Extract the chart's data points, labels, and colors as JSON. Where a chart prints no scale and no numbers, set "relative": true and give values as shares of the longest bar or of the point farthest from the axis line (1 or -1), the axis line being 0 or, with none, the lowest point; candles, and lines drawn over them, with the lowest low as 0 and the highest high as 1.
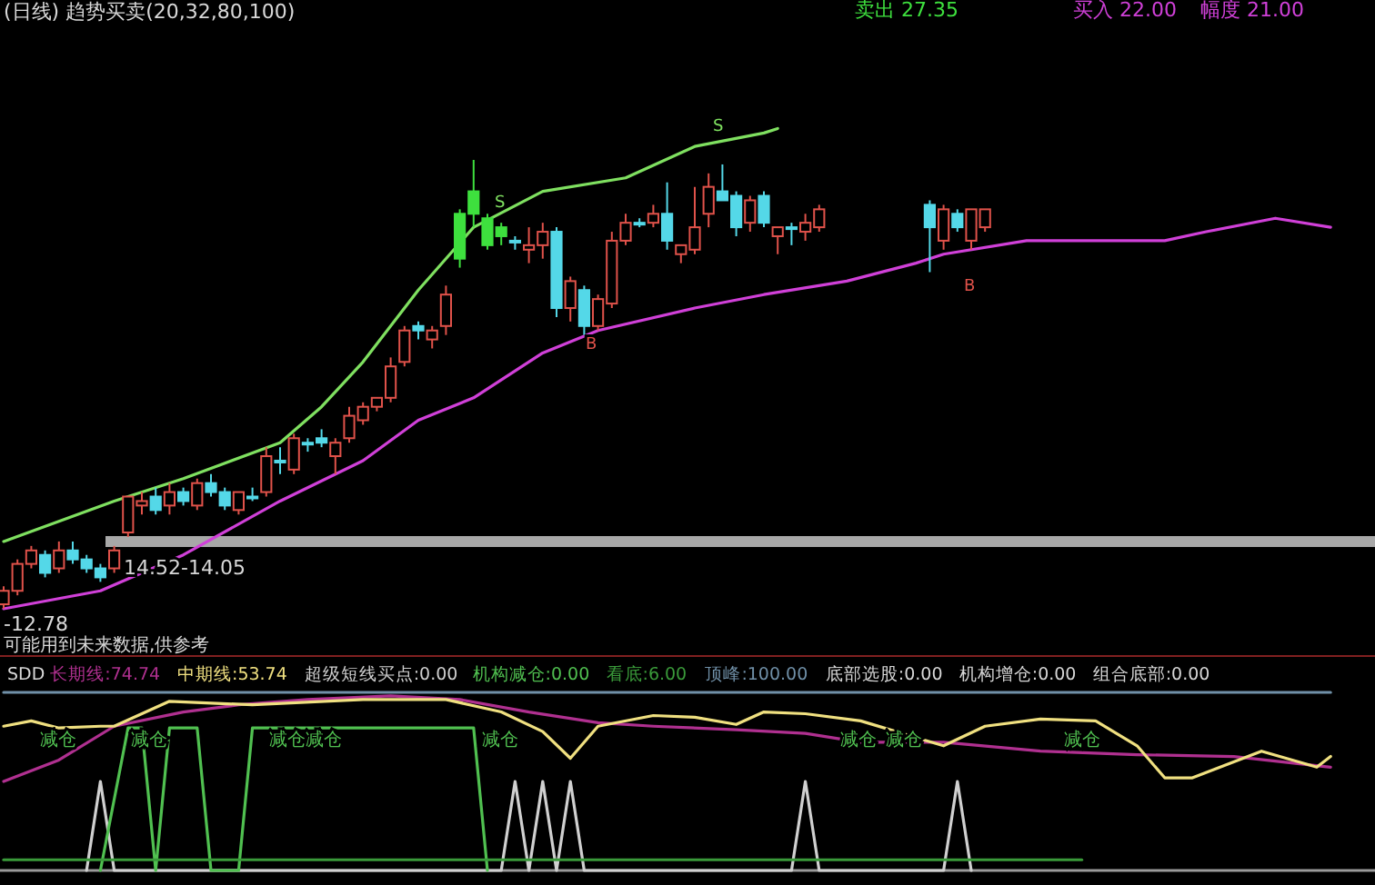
{
  "chart_data": [
    {
      "type": "candlestick",
      "relative": true,
      "title": "(日线) 趋势买卖(20,32,80,100)",
      "categories": [
        null,
        null,
        null,
        null,
        null,
        null,
        null,
        null,
        null,
        null,
        null,
        null,
        null,
        null,
        null,
        null,
        null,
        null,
        null,
        null,
        null,
        null,
        null,
        null,
        null,
        null,
        null,
        null,
        null,
        null,
        null,
        null,
        null,
        null,
        null,
        null,
        null,
        null,
        null,
        null,
        null,
        null,
        null,
        null,
        null,
        null,
        null,
        null,
        null,
        null,
        null,
        null,
        null,
        null,
        null,
        null,
        null,
        null,
        null,
        null,
        null,
        null,
        null,
        null,
        null,
        null,
        null,
        null,
        null,
        null,
        null,
        null,
        null,
        null,
        null,
        null,
        null,
        null,
        null,
        null,
        null,
        null,
        null,
        null,
        null,
        null,
        null,
        null,
        null,
        null,
        null,
        null,
        null,
        null,
        null,
        null,
        null
      ],
      "ohlc": [
        [
          0.01,
          0.05,
          0,
          0.04
        ],
        [
          0.04,
          0.11,
          0.03,
          0.1
        ],
        [
          0.1,
          0.14,
          0.09,
          0.13
        ],
        [
          0.12,
          0.13,
          0.07,
          0.08
        ],
        [
          0.09,
          0.15,
          0.08,
          0.13
        ],
        [
          0.13,
          0.15,
          0.1,
          0.11
        ],
        [
          0.11,
          0.12,
          0.08,
          0.09
        ],
        [
          0.09,
          0.1,
          0.06,
          0.07
        ],
        [
          0.09,
          0.14,
          0.08,
          0.13
        ],
        [
          0.17,
          0.25,
          0.16,
          0.25
        ],
        [
          0.23,
          0.26,
          0.21,
          0.24
        ],
        [
          0.25,
          0.27,
          0.21,
          0.22
        ],
        [
          0.23,
          0.28,
          0.21,
          0.26
        ],
        [
          0.26,
          0.27,
          0.23,
          0.24
        ],
        [
          0.23,
          0.29,
          0.22,
          0.28
        ],
        [
          0.28,
          0.3,
          0.25,
          0.26
        ],
        [
          0.26,
          0.27,
          0.22,
          0.23
        ],
        [
          0.22,
          0.26,
          0.21,
          0.26
        ],
        [
          0.25,
          0.27,
          0.24,
          0.25
        ],
        [
          0.26,
          0.36,
          0.25,
          0.34
        ],
        [
          0.33,
          0.36,
          0.3,
          0.33
        ],
        [
          0.31,
          0.39,
          0.3,
          0.38
        ],
        [
          0.37,
          0.38,
          0.35,
          0.37
        ],
        [
          0.38,
          0.4,
          0.36,
          0.37
        ],
        [
          0.34,
          0.38,
          0.3,
          0.37
        ],
        [
          0.38,
          0.45,
          0.37,
          0.43
        ],
        [
          0.42,
          0.46,
          0.41,
          0.45
        ],
        [
          0.45,
          0.47,
          0.44,
          0.47
        ],
        [
          0.47,
          0.56,
          0.46,
          0.54
        ],
        [
          0.55,
          0.63,
          0.54,
          0.62
        ],
        [
          0.63,
          0.64,
          0.6,
          0.62
        ],
        [
          0.6,
          0.63,
          0.58,
          0.62
        ],
        [
          0.63,
          0.72,
          0.61,
          0.7
        ],
        [
          0.88,
          0.89,
          0.76,
          0.78
        ],
        [
          0.93,
          1,
          0.85,
          0.88
        ],
        [
          0.87,
          0.88,
          0.8,
          0.81
        ],
        [
          0.85,
          0.86,
          0.81,
          0.83
        ],
        [
          0.82,
          0.83,
          0.8,
          0.82
        ],
        [
          0.8,
          0.85,
          0.77,
          0.81
        ],
        [
          0.81,
          0.86,
          0.78,
          0.84
        ],
        [
          0.84,
          0.85,
          0.65,
          0.67
        ],
        [
          0.67,
          0.74,
          0.64,
          0.73
        ],
        [
          0.71,
          0.72,
          0.61,
          0.63
        ],
        [
          0.63,
          0.7,
          0.62,
          0.69
        ],
        [
          0.68,
          0.84,
          0.67,
          0.82
        ],
        [
          0.82,
          0.88,
          0.81,
          0.86
        ],
        [
          0.86,
          0.87,
          0.85,
          0.86
        ],
        [
          0.86,
          0.9,
          0.85,
          0.88
        ],
        [
          0.88,
          0.95,
          0.8,
          0.82
        ],
        [
          0.79,
          0.81,
          0.77,
          0.81
        ],
        [
          0.8,
          0.94,
          0.79,
          0.85
        ],
        [
          0.88,
          0.97,
          0.85,
          0.94
        ],
        [
          0.93,
          0.99,
          0.91,
          0.91
        ],
        [
          0.92,
          0.93,
          0.83,
          0.85
        ],
        [
          0.86,
          0.92,
          0.84,
          0.91
        ],
        [
          0.92,
          0.93,
          0.85,
          0.86
        ],
        [
          0.83,
          0.85,
          0.79,
          0.85
        ],
        [
          0.85,
          0.86,
          0.81,
          0.85
        ],
        [
          0.84,
          0.88,
          0.82,
          0.86
        ],
        [
          0.85,
          0.9,
          0.84,
          0.89
        ],
        null,
        null,
        null,
        null,
        null,
        null,
        null,
        [
          0.9,
          0.91,
          0.75,
          0.85
        ],
        [
          0.82,
          0.9,
          0.8,
          0.89
        ],
        [
          0.88,
          0.89,
          0.84,
          0.85
        ],
        [
          0.82,
          0.89,
          0.8,
          0.89
        ],
        [
          0.85,
          0.89,
          0.84,
          0.89
        ],
        null,
        null,
        null,
        null,
        null,
        null,
        null,
        null,
        null,
        null,
        null,
        null,
        null,
        null,
        null,
        null,
        null,
        null,
        null,
        null,
        null,
        null,
        null,
        null,
        null
      ],
      "colors": [
        "#e0524a",
        "#e0524a",
        "#e0524a",
        "#54d8e8",
        "#e0524a",
        "#54d8e8",
        "#54d8e8",
        "#54d8e8",
        "#e0524a",
        "#e0524a",
        "#e0524a",
        "#54d8e8",
        "#e0524a",
        "#54d8e8",
        "#e0524a",
        "#54d8e8",
        "#54d8e8",
        "#e0524a",
        "#54d8e8",
        "#e0524a",
        "#54d8e8",
        "#e0524a",
        "#54d8e8",
        "#54d8e8",
        "#e0524a",
        "#e0524a",
        "#e0524a",
        "#e0524a",
        "#e0524a",
        "#e0524a",
        "#54d8e8",
        "#e0524a",
        "#e0524a",
        "#3ee03e",
        "#3ee03e",
        "#3ee03e",
        "#3ee03e",
        "#54d8e8",
        "#e0524a",
        "#e0524a",
        "#54d8e8",
        "#e0524a",
        "#54d8e8",
        "#e0524a",
        "#e0524a",
        "#e0524a",
        "#54d8e8",
        "#e0524a",
        "#54d8e8",
        "#e0524a",
        "#e0524a",
        "#e0524a",
        "#54d8e8",
        "#54d8e8",
        "#e0524a",
        "#54d8e8",
        "#e0524a",
        "#54d8e8",
        "#e0524a",
        "#e0524a",
        null,
        null,
        null,
        null,
        null,
        null,
        null,
        "#54d8e8",
        "#e0524a",
        "#54d8e8",
        "#e0524a",
        "#e0524a",
        null,
        null,
        null,
        null,
        null,
        null,
        null,
        null,
        null,
        null,
        null,
        null,
        null,
        null,
        null,
        null,
        null,
        null,
        null,
        null,
        null,
        null,
        null,
        null,
        null
      ],
      "series": [
        {
          "type": "line",
          "color": "#7fe060",
          "values": [
            0.15,
            null,
            null,
            null,
            null,
            null,
            null,
            null,
            0.24,
            null,
            null,
            null,
            null,
            0.29,
            null,
            null,
            null,
            null,
            null,
            null,
            0.37,
            null,
            null,
            0.45,
            null,
            null,
            0.55,
            null,
            null,
            null,
            0.71,
            null,
            null,
            null,
            0.85,
            null,
            null,
            null,
            null,
            0.93,
            null,
            null,
            null,
            null,
            null,
            0.96,
            null,
            null,
            null,
            null,
            1.03,
            null,
            null,
            null,
            null,
            1.06,
            1.07,
            null,
            null,
            null,
            null,
            null,
            null,
            null,
            null,
            null,
            null,
            null,
            null,
            null,
            null,
            null,
            null,
            null,
            null,
            null,
            null,
            null,
            null,
            null,
            null,
            null,
            null,
            null,
            null,
            null,
            null,
            null,
            null,
            null,
            null,
            null,
            null,
            null,
            null,
            null,
            null
          ]
        },
        {
          "type": "line",
          "color": "#d040d8",
          "values": [
            0,
            null,
            null,
            null,
            null,
            null,
            null,
            0.04,
            null,
            null,
            null,
            null,
            null,
            0.12,
            null,
            null,
            null,
            null,
            null,
            null,
            0.24,
            null,
            null,
            null,
            null,
            null,
            0.33,
            null,
            null,
            null,
            0.42,
            null,
            null,
            null,
            0.47,
            null,
            null,
            null,
            null,
            0.57,
            null,
            null,
            null,
            0.62,
            null,
            null,
            null,
            null,
            null,
            null,
            0.67,
            null,
            null,
            null,
            null,
            0.7,
            null,
            null,
            null,
            null,
            null,
            0.73,
            null,
            null,
            null,
            null,
            0.77,
            null,
            0.79,
            null,
            null,
            null,
            null,
            null,
            0.82,
            null,
            null,
            null,
            null,
            0.82,
            null,
            null,
            null,
            null,
            0.82,
            null,
            null,
            0.84,
            null,
            null,
            null,
            null,
            0.87,
            null,
            null,
            null,
            0.85
          ]
        }
      ],
      "ref_lines": [
        {
          "axis": "y",
          "value": 0.15,
          "color": "#a8a8a8"
        }
      ],
      "annotations": [
        "卖出 27.35",
        "买入 22.00",
        "幅度 21.00",
        "-12.78",
        "可能用到未来数据,供参考",
        "S",
        "S",
        "B",
        "B",
        "14.52-14.05"
      ]
    },
    {
      "type": "line",
      "relative": true,
      "title": "SDD",
      "categories": [
        null,
        null,
        null,
        null,
        null,
        null,
        null,
        null,
        null,
        null,
        null,
        null,
        null,
        null,
        null,
        null,
        null,
        null,
        null,
        null,
        null,
        null,
        null,
        null,
        null,
        null,
        null,
        null,
        null,
        null,
        null,
        null,
        null,
        null,
        null,
        null,
        null,
        null,
        null,
        null,
        null,
        null,
        null,
        null,
        null,
        null,
        null,
        null,
        null,
        null,
        null,
        null,
        null,
        null,
        null,
        null,
        null,
        null,
        null,
        null,
        null,
        null,
        null,
        null,
        null,
        null,
        null,
        null,
        null,
        null,
        null,
        null,
        null,
        null,
        null,
        null,
        null,
        null,
        null,
        null,
        null,
        null,
        null,
        null,
        null,
        null,
        null,
        null,
        null,
        null,
        null,
        null,
        null,
        null,
        null,
        null,
        null
      ],
      "series": [
        {
          "name": "长期线:74.74",
          "color": "#b03090",
          "values": [
            0.5,
            null,
            null,
            null,
            0.62,
            null,
            null,
            null,
            0.81,
            null,
            null,
            null,
            null,
            0.89,
            null,
            null,
            null,
            0.93,
            null,
            null,
            null,
            null,
            0.96,
            null,
            null,
            null,
            null,
            null,
            0.98,
            null,
            null,
            null,
            null,
            0.96,
            null,
            null,
            null,
            null,
            0.89,
            null,
            null,
            null,
            null,
            0.83,
            null,
            null,
            null,
            0.81,
            null,
            null,
            null,
            null,
            null,
            0.79,
            null,
            null,
            null,
            null,
            0.77,
            null,
            null,
            null,
            0.72,
            null,
            null,
            null,
            null,
            null,
            0.72,
            null,
            null,
            null,
            null,
            null,
            null,
            0.67,
            null,
            null,
            null,
            null,
            null,
            null,
            0.65,
            null,
            null,
            null,
            null,
            null,
            null,
            0.64,
            null,
            null,
            null,
            null,
            null,
            null,
            0.58
          ]
        },
        {
          "name": "中期线:53.74",
          "color": "#f0e080",
          "values": [
            0.81,
            null,
            0.84,
            null,
            0.8,
            null,
            null,
            0.81,
            0.81,
            null,
            null,
            null,
            0.95,
            null,
            null,
            null,
            null,
            null,
            0.93,
            null,
            null,
            null,
            null,
            null,
            null,
            null,
            0.96,
            null,
            null,
            null,
            null,
            null,
            0.96,
            null,
            null,
            null,
            0.89,
            null,
            null,
            0.78,
            null,
            0.63,
            null,
            0.81,
            null,
            null,
            null,
            0.87,
            null,
            null,
            0.86,
            null,
            null,
            0.82,
            null,
            0.89,
            null,
            null,
            0.88,
            null,
            null,
            null,
            0.84,
            null,
            null,
            null,
            null,
            null,
            0.7,
            null,
            null,
            0.81,
            null,
            null,
            null,
            0.85,
            null,
            null,
            null,
            0.84,
            null,
            null,
            0.7,
            null,
            0.52,
            null,
            0.52,
            null,
            null,
            null,
            null,
            0.67,
            null,
            null,
            null,
            0.58,
            0.64
          ]
        },
        {
          "name": "超级短线买点:0.00",
          "color": "#d0d0d0",
          "values": [
            null,
            null,
            null,
            null,
            null,
            null,
            0,
            0.5,
            0,
            null,
            null,
            null,
            null,
            null,
            null,
            null,
            null,
            null,
            null,
            null,
            null,
            null,
            null,
            null,
            null,
            null,
            null,
            null,
            null,
            null,
            null,
            null,
            null,
            null,
            null,
            null,
            0,
            0.5,
            0,
            0.5,
            0,
            0.5,
            0,
            null,
            null,
            null,
            null,
            null,
            null,
            null,
            null,
            null,
            null,
            null,
            null,
            null,
            null,
            0,
            0.5,
            0,
            null,
            null,
            null,
            null,
            null,
            null,
            null,
            null,
            0,
            0.5,
            0,
            null,
            null,
            null,
            null,
            null,
            null,
            null,
            null,
            null,
            null,
            null,
            null,
            null,
            null,
            null,
            null,
            null,
            null,
            null,
            null,
            null,
            null,
            null,
            null,
            null,
            null
          ]
        },
        {
          "name": "机构减仓:0.00",
          "color": "#50c050",
          "values": [
            null,
            null,
            null,
            null,
            null,
            null,
            null,
            0,
            null,
            0.8,
            0.8,
            0,
            0.8,
            null,
            0.8,
            0,
            null,
            0,
            0.8,
            null,
            null,
            null,
            null,
            null,
            null,
            null,
            null,
            null,
            null,
            null,
            null,
            null,
            null,
            null,
            0.8,
            0,
            null,
            null,
            null,
            null,
            null,
            null,
            null,
            null,
            null,
            null,
            null,
            null,
            null,
            null,
            null,
            null,
            null,
            null,
            null,
            null,
            null,
            null,
            null,
            null,
            null,
            null,
            null,
            null,
            null,
            null,
            null,
            null,
            null,
            null,
            null,
            null,
            null,
            null,
            null,
            null,
            null,
            null,
            null,
            null,
            null,
            null,
            null,
            null,
            null,
            null,
            null,
            null,
            null,
            null,
            null,
            null,
            null,
            null,
            null,
            null,
            null
          ]
        },
        {
          "name": "看底:6.00",
          "color": "#3a9a3a",
          "values": [
            0.06,
            null,
            null,
            null,
            null,
            null,
            null,
            null,
            null,
            null,
            null,
            null,
            null,
            null,
            null,
            null,
            null,
            null,
            null,
            null,
            null,
            null,
            null,
            null,
            null,
            null,
            null,
            null,
            null,
            null,
            null,
            null,
            null,
            null,
            null,
            null,
            null,
            null,
            null,
            null,
            null,
            null,
            null,
            null,
            null,
            null,
            null,
            null,
            null,
            null,
            null,
            null,
            null,
            null,
            null,
            null,
            null,
            null,
            null,
            null,
            null,
            null,
            null,
            null,
            null,
            null,
            null,
            null,
            null,
            null,
            null,
            null,
            null,
            null,
            null,
            null,
            null,
            null,
            0.06,
            null,
            null,
            null,
            null,
            null,
            null,
            null,
            null,
            null,
            null,
            null,
            null,
            null,
            null,
            null,
            null,
            null,
            null
          ]
        },
        {
          "name": "顶峰:100.00",
          "color": "#7090a8",
          "values": [
            1,
            null,
            null,
            null,
            null,
            null,
            null,
            null,
            null,
            null,
            null,
            null,
            null,
            null,
            null,
            null,
            null,
            null,
            null,
            null,
            null,
            null,
            null,
            null,
            null,
            null,
            null,
            null,
            null,
            null,
            null,
            null,
            null,
            null,
            null,
            null,
            null,
            null,
            null,
            null,
            null,
            null,
            null,
            null,
            null,
            null,
            null,
            null,
            null,
            null,
            null,
            null,
            null,
            null,
            null,
            null,
            null,
            null,
            null,
            null,
            null,
            null,
            null,
            null,
            null,
            null,
            null,
            null,
            null,
            null,
            null,
            null,
            null,
            null,
            null,
            null,
            null,
            null,
            null,
            null,
            null,
            null,
            null,
            null,
            null,
            null,
            null,
            null,
            null,
            null,
            null,
            null,
            null,
            null,
            null,
            null,
            1
          ]
        }
      ],
      "annotations": [
        "底部选股:0.00",
        "机构增仓:0.00",
        "组合底部:0.00",
        "减仓",
        "减仓",
        "减仓减仓",
        "减仓",
        "减仓",
        "减仓",
        "减仓"
      ]
    }
  ]
}
